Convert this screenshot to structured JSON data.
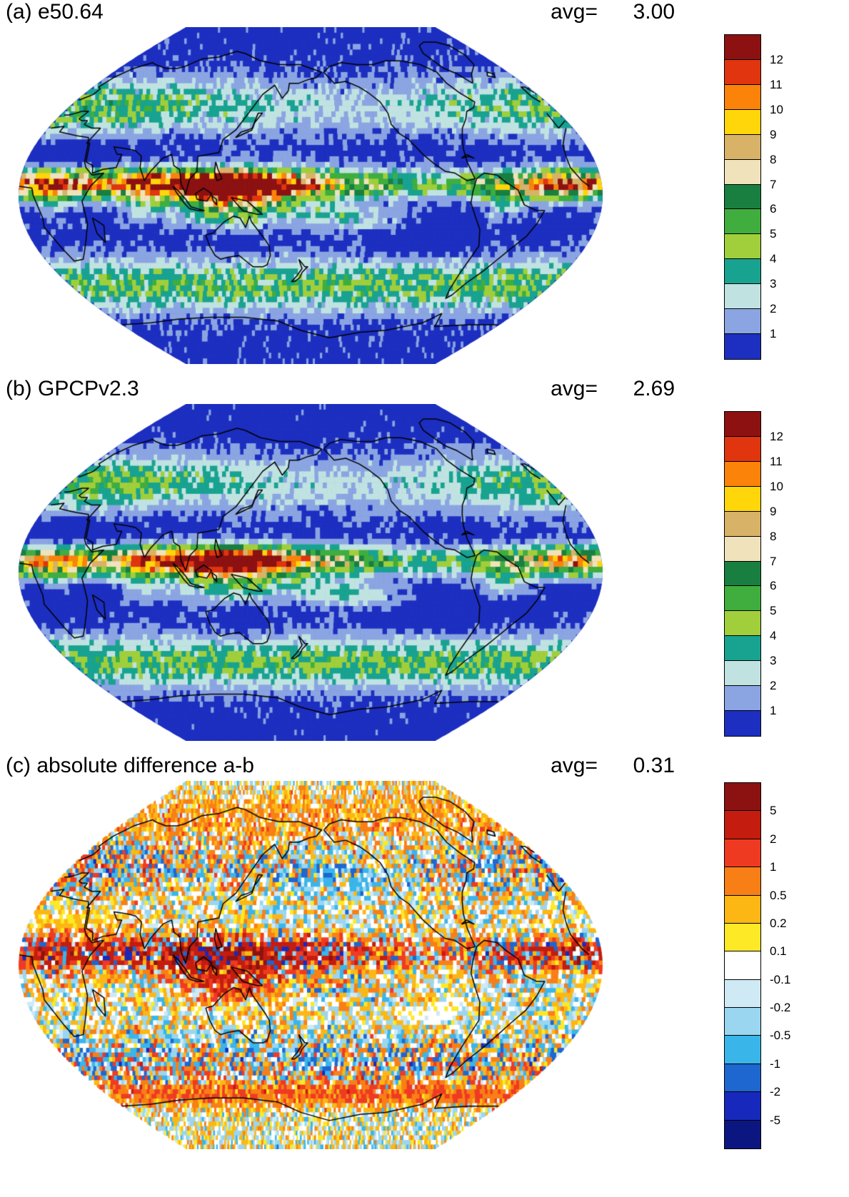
{
  "panels": [
    {
      "key": "a",
      "title": "(a) e50.64",
      "avg_label": "avg=",
      "avg_value": "3.00",
      "colorbar": {
        "tick_labels": [
          "12",
          "11",
          "10",
          "9",
          "8",
          "7",
          "6",
          "5",
          "4",
          "3",
          "2",
          "1"
        ],
        "colors_top_to_bottom": [
          "#8d1111",
          "#e0350e",
          "#fb830a",
          "#ffd60a",
          "#d8b267",
          "#f0e2ba",
          "#187f41",
          "#3fae3e",
          "#a0cf3b",
          "#18a390",
          "#c0e3e2",
          "#8ba5e2",
          "#1d2fc0"
        ],
        "levels": [
          1,
          2,
          3,
          4,
          5,
          6,
          7,
          8,
          9,
          10,
          11,
          12
        ]
      }
    },
    {
      "key": "b",
      "title": "(b) GPCPv2.3",
      "avg_label": "avg=",
      "avg_value": "2.69",
      "colorbar": {
        "tick_labels": [
          "12",
          "11",
          "10",
          "9",
          "8",
          "7",
          "6",
          "5",
          "4",
          "3",
          "2",
          "1"
        ],
        "colors_top_to_bottom": [
          "#8d1111",
          "#e0350e",
          "#fb830a",
          "#ffd60a",
          "#d8b267",
          "#f0e2ba",
          "#187f41",
          "#3fae3e",
          "#a0cf3b",
          "#18a390",
          "#c0e3e2",
          "#8ba5e2",
          "#1d2fc0"
        ],
        "levels": [
          1,
          2,
          3,
          4,
          5,
          6,
          7,
          8,
          9,
          10,
          11,
          12
        ]
      }
    },
    {
      "key": "c",
      "title": "(c) absolute difference a-b",
      "avg_label": "avg=",
      "avg_value": "0.31",
      "colorbar": {
        "tick_labels": [
          "5",
          "2",
          "1",
          "0.5",
          "0.2",
          "0.1",
          "-0.1",
          "-0.2",
          "-0.5",
          "-1",
          "-2",
          "-5"
        ],
        "colors_top_to_bottom": [
          "#8c1212",
          "#c41c0e",
          "#ef3a22",
          "#f87f16",
          "#fcb714",
          "#fde925",
          "#ffffff",
          "#cfe9f5",
          "#9ad6f0",
          "#3ab5ea",
          "#1e66d0",
          "#1729bc",
          "#0c1680"
        ],
        "levels": [
          -5,
          -2,
          -1,
          -0.5,
          -0.2,
          -0.1,
          0.1,
          0.2,
          0.5,
          1,
          2,
          5
        ]
      }
    }
  ],
  "chart_data": [
    {
      "type": "heatmap",
      "title": "(a) e50.64",
      "annotation": "avg=    3.00",
      "legend_ticks": [
        "12",
        "11",
        "10",
        "9",
        "8",
        "7",
        "6",
        "5",
        "4",
        "3",
        "2",
        "1"
      ],
      "legend_colors": [
        "#8d1111",
        "#e0350e",
        "#fb830a",
        "#ffd60a",
        "#d8b267",
        "#f0e2ba",
        "#187f41",
        "#3fae3e",
        "#a0cf3b",
        "#18a390",
        "#c0e3e2",
        "#8ba5e2",
        "#1d2fc0"
      ],
      "description": "Global gridded precipitation map, blocky filled cells, high values along tropical ITCZ / maritime continent (reds), low values in subtropics and poles (blues)"
    },
    {
      "type": "heatmap",
      "title": "(b) GPCPv2.3",
      "annotation": "avg=    2.69",
      "legend_ticks": [
        "12",
        "11",
        "10",
        "9",
        "8",
        "7",
        "6",
        "5",
        "4",
        "3",
        "2",
        "1"
      ],
      "legend_colors": [
        "#8d1111",
        "#e0350e",
        "#fb830a",
        "#ffd60a",
        "#d8b267",
        "#f0e2ba",
        "#187f41",
        "#3fae3e",
        "#a0cf3b",
        "#18a390",
        "#c0e3e2",
        "#8ba5e2",
        "#1d2fc0"
      ],
      "description": "Global gridded observed precipitation map, weaker tropical maxima than panel a"
    },
    {
      "type": "heatmap",
      "title": "(c) absolute difference a-b",
      "annotation": "avg=    0.31",
      "legend_ticks": [
        "5",
        "2",
        "1",
        "0.5",
        "0.2",
        "0.1",
        "-0.1",
        "-0.2",
        "-0.5",
        "-1",
        "-2",
        "-5"
      ],
      "legend_colors": [
        "#8c1212",
        "#c41c0e",
        "#ef3a22",
        "#f87f16",
        "#fcb714",
        "#fde925",
        "#ffffff",
        "#cfe9f5",
        "#9ad6f0",
        "#3ab5ea",
        "#1e66d0",
        "#1729bc",
        "#0c1680"
      ],
      "description": "Difference map a minus b, strong positive (red) band across tropical Africa / Indian Ocean / warm pool, speckled positive and negative differences elsewhere"
    }
  ]
}
